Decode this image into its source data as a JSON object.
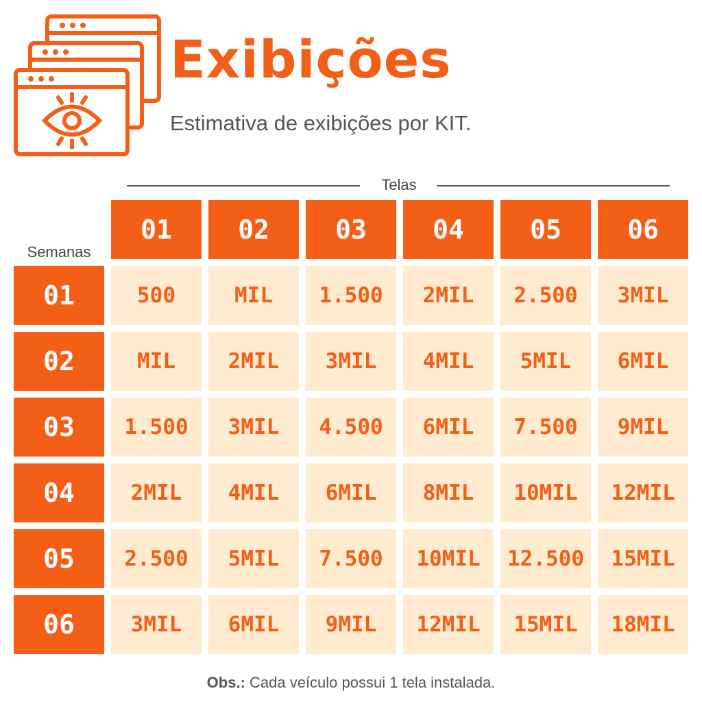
{
  "header": {
    "title": "Exibições",
    "subtitle": "Estimativa de exibições por KIT.",
    "icon": "browser-windows-eye-icon"
  },
  "table": {
    "columns_label": "Telas",
    "rows_label": "Semanas",
    "columns": [
      "01",
      "02",
      "03",
      "04",
      "05",
      "06"
    ],
    "rows": [
      {
        "label": "01",
        "values": [
          "500",
          "MIL",
          "1.500",
          "2MIL",
          "2.500",
          "3MIL"
        ]
      },
      {
        "label": "02",
        "values": [
          "MIL",
          "2MIL",
          "3MIL",
          "4MIL",
          "5MIL",
          "6MIL"
        ]
      },
      {
        "label": "03",
        "values": [
          "1.500",
          "3MIL",
          "4.500",
          "6MIL",
          "7.500",
          "9MIL"
        ]
      },
      {
        "label": "04",
        "values": [
          "2MIL",
          "4MIL",
          "6MIL",
          "8MIL",
          "10MIL",
          "12MIL"
        ]
      },
      {
        "label": "05",
        "values": [
          "2.500",
          "5MIL",
          "7.500",
          "10MIL",
          "12.500",
          "15MIL"
        ]
      },
      {
        "label": "06",
        "values": [
          "3MIL",
          "6MIL",
          "9MIL",
          "12MIL",
          "15MIL",
          "18MIL"
        ]
      }
    ]
  },
  "footer": {
    "note_bold": "Obs.:",
    "note_text": " Cada veículo possui 1 tela instalada."
  },
  "colors": {
    "accent": "#F35F16",
    "cell_bg": "#FEEBD0",
    "text_gray": "#555555"
  }
}
